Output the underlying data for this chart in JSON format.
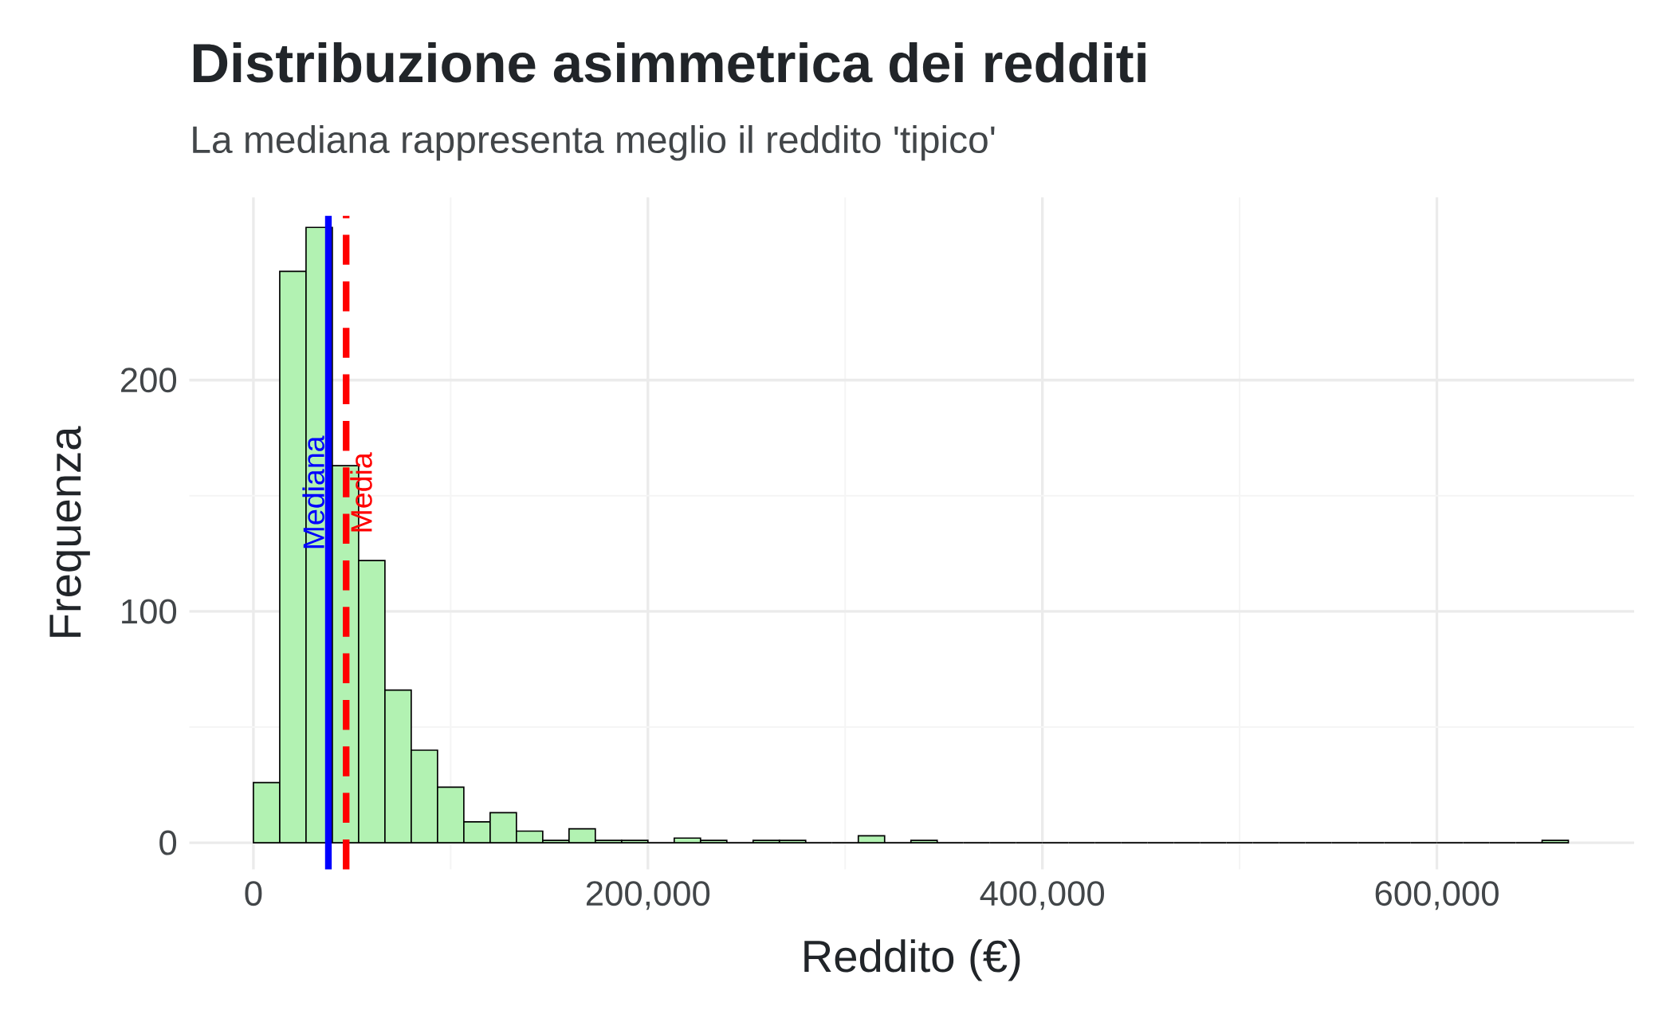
{
  "chart_data": {
    "type": "histogram",
    "title": "Distribuzione asimmetrica dei redditi",
    "subtitle": "La mediana rappresenta meglio il reddito 'tipico'",
    "xlabel": "Reddito (€)",
    "ylabel": "Frequenza",
    "bins": [
      0,
      13333,
      26667,
      40000,
      53333,
      66667,
      80000,
      93333,
      106667,
      120000,
      133333,
      146667,
      160000,
      173333,
      186667,
      200000,
      213333,
      226667,
      240000,
      253333,
      266667,
      280000,
      293333,
      306667,
      320000,
      333333,
      346667,
      360000,
      373333,
      386667,
      400000,
      413333,
      426667,
      440000,
      453333,
      466667,
      480000,
      493333,
      506667,
      520000,
      533333,
      546667,
      560000,
      573333,
      586667,
      600000,
      613333,
      626667,
      640000,
      653333,
      666667
    ],
    "values": [
      26,
      247,
      266,
      163,
      122,
      66,
      40,
      24,
      9,
      13,
      5,
      1,
      6,
      1,
      1,
      0,
      2,
      1,
      0,
      1,
      1,
      0,
      0,
      3,
      0,
      1,
      0,
      0,
      0,
      0,
      0,
      0,
      0,
      0,
      0,
      0,
      0,
      0,
      0,
      0,
      0,
      0,
      0,
      0,
      0,
      0,
      0,
      0,
      0,
      1
    ],
    "color": "#b2f2b2",
    "xlim": [
      -32500,
      700000
    ],
    "ylim": [
      -11.5,
      279
    ],
    "xticks": [
      0,
      {
        "value": 200000,
        "label": "200,000"
      },
      {
        "value": 400000,
        "label": "400,000"
      },
      {
        "value": 600000,
        "label": "600,000"
      }
    ],
    "yticks": [
      0,
      100,
      200
    ],
    "grid": true,
    "ref_lines": [
      {
        "axis": "x",
        "value": 38000,
        "label": "Mediana",
        "color": "#0000ff",
        "line_style": "solid"
      },
      {
        "axis": "x",
        "value": 47000,
        "label": "Media",
        "color": "#ff0000",
        "line_style": "dashed"
      }
    ]
  }
}
